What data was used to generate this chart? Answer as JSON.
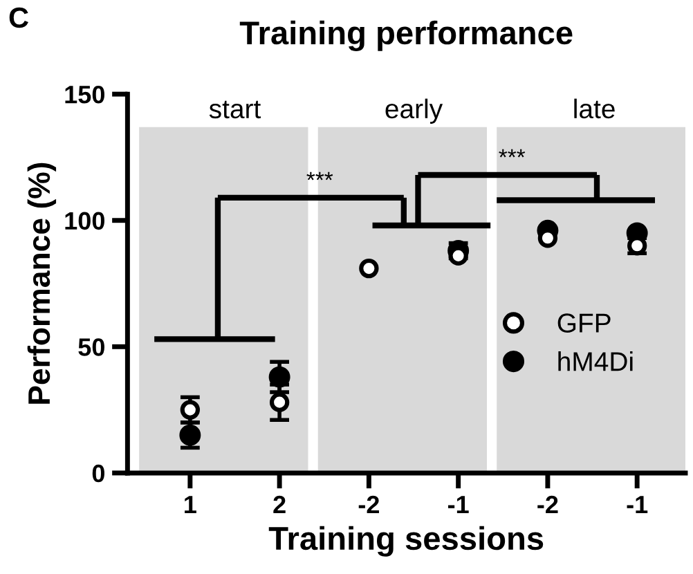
{
  "chart_data": {
    "type": "scatter",
    "title": "Training performance",
    "xlabel": "Training sessions",
    "ylabel": "Performance (%)",
    "categories": [
      "1",
      "2",
      "-2",
      "-1",
      "-2",
      "-1"
    ],
    "series": [
      {
        "name": "GFP",
        "color": "#ffffff",
        "values": [
          25,
          28,
          81,
          86,
          93,
          90
        ],
        "errors": [
          5,
          7,
          null,
          null,
          null,
          3
        ]
      },
      {
        "name": "hM4Di",
        "color": "#000000",
        "values": [
          15,
          38,
          null,
          88,
          96,
          95
        ],
        "errors": [
          5,
          6,
          null,
          3,
          null,
          null
        ]
      }
    ],
    "ylim": [
      0,
      150
    ],
    "yticks": [
      0,
      50,
      100,
      150
    ],
    "annotations": [
      "C",
      "start",
      "early",
      "late",
      "***",
      "***"
    ],
    "marker": "circle",
    "legend": "bottom right",
    "grid": false
  }
}
